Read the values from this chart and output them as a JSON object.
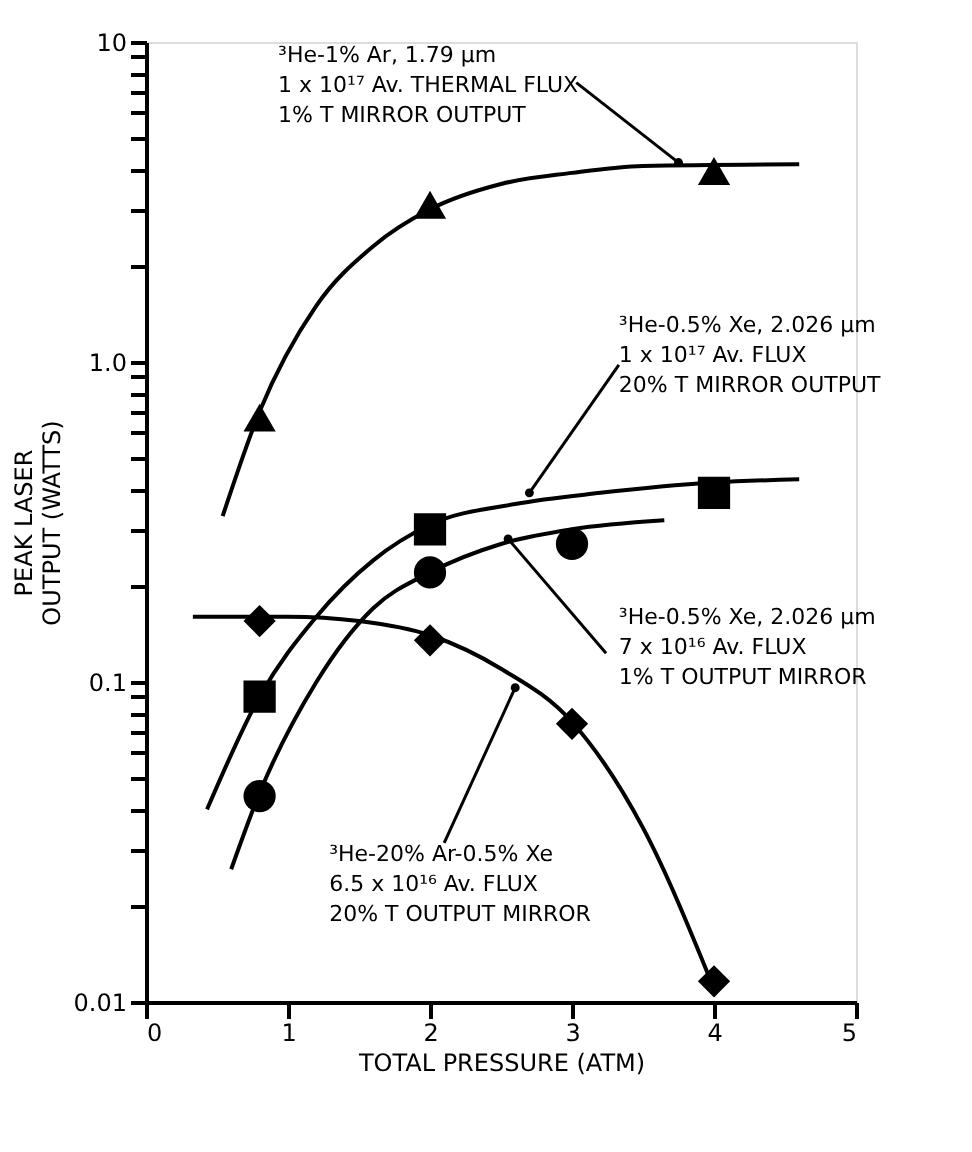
{
  "chart_data": {
    "type": "scatter",
    "xlabel": "TOTAL PRESSURE (ATM)",
    "ylabel": "PEAK LASER\nOUTPUT (WATTS)",
    "log": "y",
    "grid": false,
    "xlim": [
      0,
      5
    ],
    "xticks": [
      0,
      1,
      2,
      3,
      4,
      5
    ],
    "ylim": [
      0.01,
      10
    ],
    "yticks": [
      {
        "value": 0.01,
        "label": "0.01"
      },
      {
        "value": 0.02,
        "label": null
      },
      {
        "value": 0.03,
        "label": null
      },
      {
        "value": 0.04,
        "label": null
      },
      {
        "value": 0.05,
        "label": null
      },
      {
        "value": 0.06,
        "label": null
      },
      {
        "value": 0.07,
        "label": null
      },
      {
        "value": 0.08,
        "label": null
      },
      {
        "value": 0.09,
        "label": null
      },
      {
        "value": 0.1,
        "label": "0.1"
      },
      {
        "value": 0.2,
        "label": null
      },
      {
        "value": 0.3,
        "label": null
      },
      {
        "value": 0.4,
        "label": null
      },
      {
        "value": 0.5,
        "label": null
      },
      {
        "value": 0.6,
        "label": null
      },
      {
        "value": 0.7,
        "label": null
      },
      {
        "value": 0.8,
        "label": null
      },
      {
        "value": 0.9,
        "label": null
      },
      {
        "value": 1,
        "label": "1.0"
      },
      {
        "value": 2,
        "label": null
      },
      {
        "value": 3,
        "label": null
      },
      {
        "value": 4,
        "label": null
      },
      {
        "value": 5,
        "label": null
      },
      {
        "value": 6,
        "label": null
      },
      {
        "value": 7,
        "label": null
      },
      {
        "value": 8,
        "label": null
      },
      {
        "value": 9,
        "label": null
      },
      {
        "value": 10,
        "label": "10"
      }
    ],
    "series": [
      {
        "type": "line",
        "color": "#000000",
        "marker": "none",
        "x": [
          0.54,
          0.8,
          1.2,
          1.6,
          2,
          2.5,
          3,
          3.5,
          4.6
        ],
        "values": [
          0.33,
          0.7,
          1.5,
          2.3,
          3.0,
          3.6,
          3.9,
          4.1,
          4.15
        ]
      },
      {
        "type": "line",
        "color": "#000000",
        "marker": "none",
        "x": [
          0.43,
          0.8,
          1.2,
          1.6,
          2,
          2.6,
          3.2,
          4,
          4.6
        ],
        "values": [
          0.04,
          0.09,
          0.16,
          0.24,
          0.31,
          0.36,
          0.39,
          0.42,
          0.43
        ]
      },
      {
        "type": "line",
        "color": "#000000",
        "marker": "none",
        "x": [
          0.6,
          0.8,
          1.2,
          1.6,
          2,
          2.5,
          3,
          3.65
        ],
        "values": [
          0.026,
          0.045,
          0.1,
          0.17,
          0.22,
          0.27,
          0.3,
          0.32
        ]
      },
      {
        "type": "line",
        "color": "#000000",
        "marker": "none",
        "x": [
          0.33,
          1,
          1.5,
          2,
          2.5,
          3,
          3.5,
          4
        ],
        "values": [
          0.16,
          0.16,
          0.155,
          0.14,
          0.11,
          0.075,
          0.035,
          0.011
        ]
      },
      {
        "color": "#000000",
        "marker": "triangle",
        "x": [
          0.8,
          2,
          4
        ],
        "values": [
          0.67,
          3.1,
          3.95
        ]
      },
      {
        "color": "#000000",
        "marker": "square",
        "x": [
          0.8,
          2,
          4
        ],
        "values": [
          0.09,
          0.3,
          0.39
        ]
      },
      {
        "color": "#000000",
        "marker": "circle",
        "x": [
          0.8,
          2,
          3
        ],
        "values": [
          0.044,
          0.22,
          0.27
        ]
      },
      {
        "color": "#000000",
        "marker": "diamond",
        "x": [
          0.8,
          2,
          3,
          4
        ],
        "values": [
          0.155,
          0.135,
          0.074,
          0.0116
        ]
      }
    ],
    "annotations": [
      {
        "text": "³He-1% Ar, 1.79 µm\n1 x 10¹⁷ Av. THERMAL FLUX\n1% T MIRROR OUTPUT",
        "x": 3.75,
        "y": 4.2
      },
      {
        "text": "³He-0.5% Xe, 2.026 µm\n1 x 10¹⁷ Av. FLUX\n20% T MIRROR OUTPUT",
        "x": 2.7,
        "y": 0.39
      },
      {
        "text": "³He-0.5% Xe, 2.026 µm\n7 x 10¹⁶ Av. FLUX\n1% T OUTPUT MIRROR",
        "x": 2.55,
        "y": 0.28
      },
      {
        "text": "³He-20% Ar-0.5% Xe\n6.5 x 10¹⁶ Av. FLUX\n20% T OUTPUT MIRROR",
        "x": 2.6,
        "y": 0.096
      }
    ]
  }
}
